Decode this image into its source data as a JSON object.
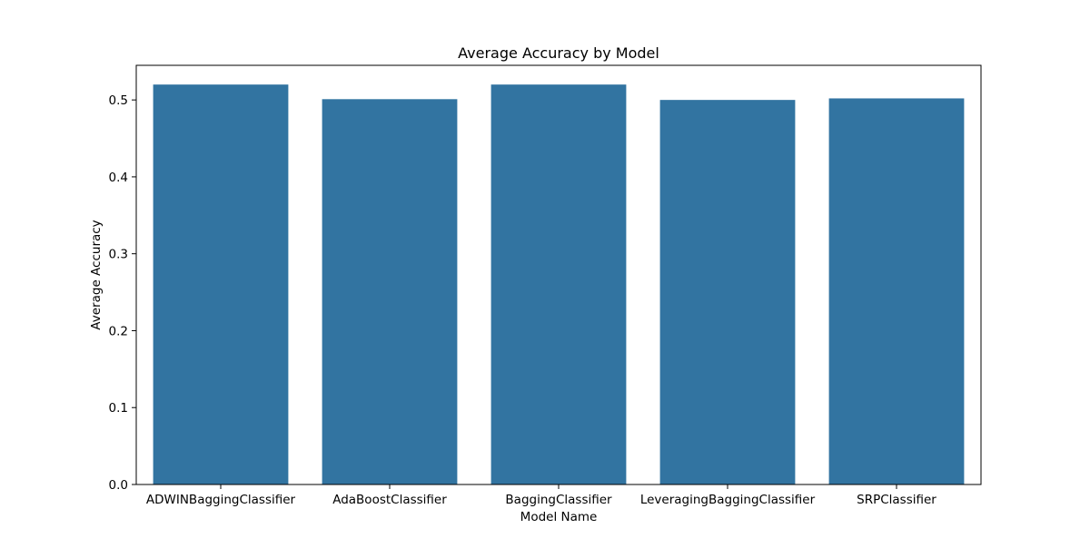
{
  "chart_data": {
    "type": "bar",
    "title": "Average Accuracy by Model",
    "xlabel": "Model Name",
    "ylabel": "Average Accuracy",
    "categories": [
      "ADWINBaggingClassifier",
      "AdaBoostClassifier",
      "BaggingClassifier",
      "LeveragingBaggingClassifier",
      "SRPClassifier"
    ],
    "values": [
      0.52,
      0.501,
      0.52,
      0.5,
      0.502
    ],
    "ylim": [
      0,
      0.545
    ],
    "yticks": [
      0.0,
      0.1,
      0.2,
      0.3,
      0.4,
      0.5
    ],
    "ytick_labels": [
      "0.0",
      "0.1",
      "0.2",
      "0.3",
      "0.4",
      "0.5"
    ],
    "grid": false,
    "bar_color": "#3274a1"
  }
}
